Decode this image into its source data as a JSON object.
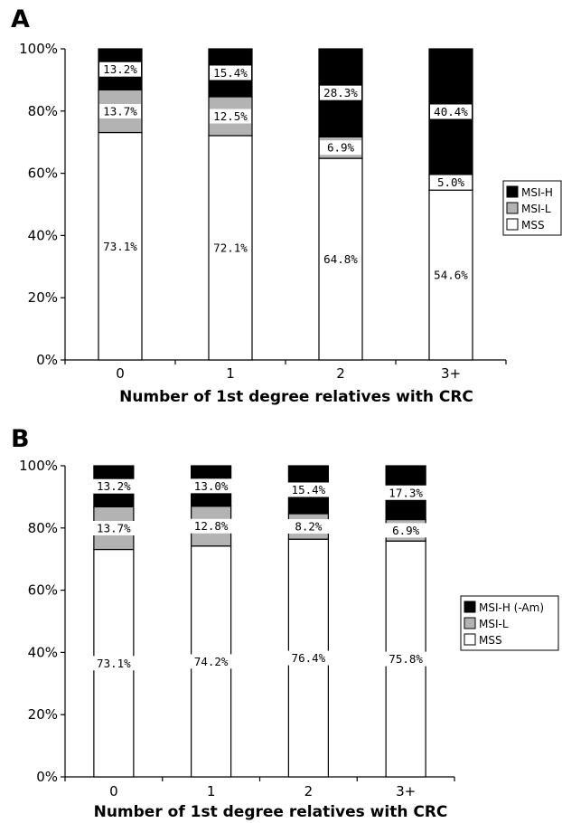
{
  "chart_data": [
    {
      "panel": "A",
      "type": "bar",
      "stacked": true,
      "categories": [
        "0",
        "1",
        "2",
        "3+"
      ],
      "series": [
        {
          "name": "MSS",
          "values": [
            73.1,
            72.1,
            64.8,
            54.6
          ],
          "labels": [
            "73.1%",
            "72.1%",
            "64.8%",
            "54.6%"
          ],
          "color": "#ffffff"
        },
        {
          "name": "MSI-L",
          "values": [
            13.7,
            12.5,
            6.9,
            5.0
          ],
          "labels": [
            "13.7%",
            "12.5%",
            "6.9%",
            "5.0%"
          ],
          "color": "#b3b3b3"
        },
        {
          "name": "MSI-H",
          "values": [
            13.2,
            15.4,
            28.3,
            40.4
          ],
          "labels": [
            "13.2%",
            "15.4%",
            "28.3%",
            "40.4%"
          ],
          "color": "#000000"
        }
      ],
      "legend_order": [
        "MSI-H",
        "MSI-L",
        "MSS"
      ],
      "legend_position": "right",
      "xlabel": "Number of 1st degree relatives with CRC",
      "ylabel": "",
      "ylim": [
        0,
        100
      ],
      "yticks": [
        "0%",
        "20%",
        "40%",
        "60%",
        "80%",
        "100%"
      ],
      "grid": false
    },
    {
      "panel": "B",
      "type": "bar",
      "stacked": true,
      "categories": [
        "0",
        "1",
        "2",
        "3+"
      ],
      "series": [
        {
          "name": "MSS",
          "values": [
            73.1,
            74.2,
            76.4,
            75.8
          ],
          "labels": [
            "73.1%",
            "74.2%",
            "76.4%",
            "75.8%"
          ],
          "color": "#ffffff"
        },
        {
          "name": "MSI-L",
          "values": [
            13.7,
            12.8,
            8.2,
            6.9
          ],
          "labels": [
            "13.7%",
            "12.8%",
            "8.2%",
            "6.9%"
          ],
          "color": "#b3b3b3"
        },
        {
          "name": "MSI-H (-Am)",
          "values": [
            13.2,
            13.0,
            15.4,
            17.3
          ],
          "labels": [
            "13.2%",
            "13.0%",
            "15.4%",
            "17.3%"
          ],
          "color": "#000000"
        }
      ],
      "legend_order": [
        "MSI-H (-Am)",
        "MSI-L",
        "MSS"
      ],
      "legend_position": "right",
      "xlabel": "Number of 1st degree relatives with CRC",
      "ylabel": "",
      "ylim": [
        0,
        100
      ],
      "yticks": [
        "0%",
        "20%",
        "40%",
        "60%",
        "80%",
        "100%"
      ],
      "grid": false
    }
  ]
}
